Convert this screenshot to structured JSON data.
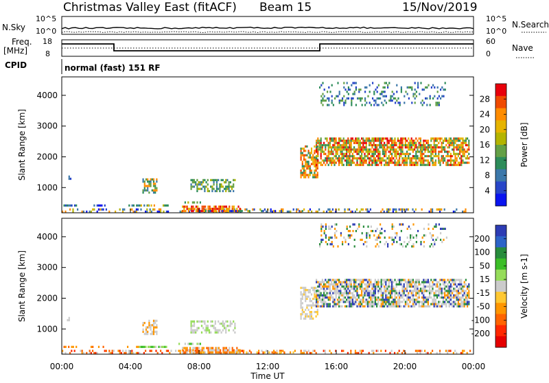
{
  "header": {
    "title": "Christmas Valley East (fitACF)",
    "beam": "Beam 15",
    "date": "15/Nov/2019"
  },
  "noise_panel": {
    "left_label": "N.Sky",
    "right_label": "N.Search",
    "left_ticks": [
      "10^5",
      "10^0"
    ],
    "right_ticks": [
      "10^5",
      "10^0"
    ]
  },
  "freq_panel": {
    "left_label_1": "Freq.",
    "left_label_2": "[MHz]",
    "right_label": "Nave",
    "left_ticks": [
      "18",
      "8"
    ],
    "right_ticks": [
      "60",
      "0"
    ]
  },
  "cpid_panel": {
    "label": "CPID",
    "mode": "normal (fast) 151 RF"
  },
  "chart_data": [
    {
      "type": "heatmap",
      "name": "power",
      "ylabel": "Slant Range [km]",
      "yticks": [
        1000,
        2000,
        3000,
        4000
      ],
      "ylim": [
        180,
        4600
      ],
      "xlim_hours": [
        0,
        24
      ],
      "colorbar": {
        "label": "Power [dB]",
        "ticks": [
          "28",
          "24",
          "20",
          "16",
          "12",
          "8",
          "4"
        ],
        "colors": [
          "#e8000b",
          "#f04a00",
          "#ff8c00",
          "#e6b400",
          "#b4b400",
          "#64a046",
          "#2d8c5a",
          "#3c78aa",
          "#2846c8",
          "#0a14f0"
        ]
      }
    },
    {
      "type": "heatmap",
      "name": "velocity",
      "ylabel": "Slant Range [km]",
      "yticks": [
        1000,
        2000,
        3000,
        4000
      ],
      "ylim": [
        180,
        4600
      ],
      "xlim_hours": [
        0,
        24
      ],
      "colorbar": {
        "label": "Velocity [m s-1]",
        "ticks": [
          "200",
          "100",
          "50",
          "15",
          "-15",
          "-50",
          "-100",
          "-200"
        ],
        "colors": [
          "#2d3cb4",
          "#2d64c8",
          "#288c3c",
          "#3cbe28",
          "#96dc5a",
          "#cbcbcb",
          "#ffc832",
          "#ff9600",
          "#ff6400",
          "#ff2800",
          "#e60000"
        ]
      }
    }
  ],
  "x_axis": {
    "ticks": [
      "00:00",
      "04:00",
      "08:00",
      "12:00",
      "16:00",
      "20:00",
      "00:00"
    ],
    "label": "Time UT"
  }
}
